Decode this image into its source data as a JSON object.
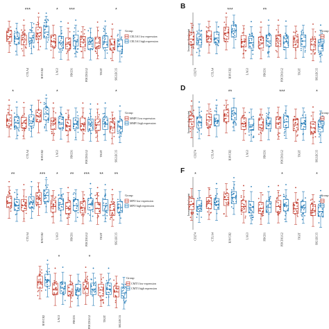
{
  "colors": {
    "low": "#c0392b",
    "high": "#1f77b4",
    "axis": "#333333"
  },
  "chart_data": [
    {
      "id": "A",
      "type": "box",
      "panel_label": "",
      "categories": [
        "CD274",
        "CTLA4",
        "HAVCR2",
        "LAG3",
        "PDCD1",
        "PDCD1LG2",
        "TIGIT",
        "SIGLEC15"
      ],
      "category_labels": [
        "",
        "CTLA4",
        "HAVCR2",
        "LAG3",
        "PDCD1",
        "PDCD1LG2",
        "TIGIT",
        "SIGLEC15"
      ],
      "significance": [
        "",
        "***",
        "",
        "*",
        "***",
        "",
        "",
        "*"
      ],
      "ylabel": "",
      "legend": {
        "title": "Group",
        "entries": [
          "CEL5A1 low expression",
          "CEL5A1 high expression"
        ]
      },
      "series": [
        {
          "name": "CEL5A1 low expression",
          "median": [
            0.55,
            0.48,
            0.62,
            0.45,
            0.4,
            0.44,
            0.42,
            0.38
          ],
          "q1": [
            0.45,
            0.38,
            0.5,
            0.34,
            0.3,
            0.34,
            0.32,
            0.28
          ],
          "q3": [
            0.66,
            0.58,
            0.74,
            0.58,
            0.52,
            0.55,
            0.54,
            0.5
          ]
        },
        {
          "name": "CEL5A1 high expression",
          "median": [
            0.5,
            0.52,
            0.64,
            0.42,
            0.46,
            0.4,
            0.44,
            0.36
          ],
          "q1": [
            0.4,
            0.42,
            0.52,
            0.31,
            0.36,
            0.3,
            0.33,
            0.26
          ],
          "q3": [
            0.62,
            0.63,
            0.76,
            0.55,
            0.58,
            0.52,
            0.56,
            0.48
          ]
        }
      ]
    },
    {
      "id": "B",
      "type": "box",
      "panel_label": "B",
      "categories": [
        "CD274",
        "CTLA4",
        "HAVCR2",
        "LAG3",
        "PDCD1",
        "PDCD1LG2",
        "TIGIT",
        "SIGLEC15"
      ],
      "category_labels": [
        "CD274",
        "CTLA4",
        "HAVCR2",
        "LAG3",
        "PDCD1",
        "PDCD1LG2",
        "TIGIT",
        "SIGLEC15"
      ],
      "significance": [
        "",
        "",
        "***",
        "",
        "**",
        "",
        "",
        ""
      ],
      "ylabel": "Immune checkpoint",
      "legend": {
        "title": "Group",
        "entries": [
          "",
          ""
        ]
      },
      "series": [
        {
          "name": "",
          "median": [
            0.5,
            0.55,
            0.62,
            0.45,
            0.42,
            0.46,
            0.44,
            0.38
          ],
          "q1": [
            0.4,
            0.44,
            0.5,
            0.34,
            0.32,
            0.35,
            0.33,
            0.28
          ],
          "q3": [
            0.62,
            0.66,
            0.74,
            0.57,
            0.54,
            0.58,
            0.56,
            0.5
          ]
        },
        {
          "name": "",
          "median": [
            0.48,
            0.52,
            0.66,
            0.43,
            0.46,
            0.44,
            0.46,
            0.36
          ],
          "q1": [
            0.38,
            0.42,
            0.54,
            0.32,
            0.36,
            0.33,
            0.35,
            0.26
          ],
          "q3": [
            0.6,
            0.64,
            0.78,
            0.55,
            0.58,
            0.56,
            0.58,
            0.48
          ]
        }
      ]
    },
    {
      "id": "C",
      "type": "box",
      "panel_label": "",
      "categories": [
        "CD274",
        "CTLA4",
        "HAVCR2",
        "LAG3",
        "PDCD1",
        "PDCD1LG2",
        "TIGIT",
        "SIGLEC15"
      ],
      "category_labels": [
        "",
        "CTLA4",
        "HAVCR2",
        "LAG3",
        "PDCD1",
        "PDCD1LG2",
        "TIGIT",
        "SIGLEC15"
      ],
      "significance": [
        "*",
        "",
        "",
        "*",
        "",
        "",
        "",
        "*"
      ],
      "ylabel": "",
      "legend": {
        "title": "Group",
        "entries": [
          "MMP1 low expression",
          "MMP1 high expression"
        ]
      },
      "series": [
        {
          "name": "MMP1 low expression",
          "median": [
            0.5,
            0.46,
            0.6,
            0.44,
            0.4,
            0.44,
            0.42,
            0.36
          ],
          "q1": [
            0.4,
            0.36,
            0.48,
            0.33,
            0.3,
            0.33,
            0.31,
            0.26
          ],
          "q3": [
            0.62,
            0.57,
            0.72,
            0.56,
            0.52,
            0.56,
            0.54,
            0.48
          ]
        },
        {
          "name": "MMP1 high expression",
          "median": [
            0.46,
            0.5,
            0.64,
            0.46,
            0.44,
            0.42,
            0.44,
            0.38
          ],
          "q1": [
            0.36,
            0.4,
            0.52,
            0.35,
            0.34,
            0.31,
            0.33,
            0.28
          ],
          "q3": [
            0.58,
            0.62,
            0.76,
            0.58,
            0.56,
            0.54,
            0.56,
            0.5
          ]
        }
      ]
    },
    {
      "id": "D",
      "type": "box",
      "panel_label": "D",
      "categories": [
        "CD274",
        "CTLA4",
        "HAVCR2",
        "LAG3",
        "PDCD1",
        "PDCD1LG2",
        "TIGIT",
        "SIGLEC15"
      ],
      "category_labels": [
        "CD274",
        "CTLA4",
        "HAVCR2",
        "LAG3",
        "PDCD1",
        "PDCD1LG2",
        "TIGIT",
        "SIGLEC15"
      ],
      "significance": [
        "",
        "",
        "**",
        "",
        "",
        "***",
        "",
        "*"
      ],
      "ylabel": "Immune checkpoint",
      "legend": {
        "title": "Group",
        "entries": [
          "",
          ""
        ]
      },
      "series": [
        {
          "name": "",
          "median": [
            0.48,
            0.52,
            0.6,
            0.44,
            0.42,
            0.46,
            0.42,
            0.36
          ],
          "q1": [
            0.38,
            0.42,
            0.48,
            0.33,
            0.32,
            0.35,
            0.31,
            0.26
          ],
          "q3": [
            0.6,
            0.64,
            0.72,
            0.56,
            0.54,
            0.58,
            0.54,
            0.48
          ]
        },
        {
          "name": "",
          "median": [
            0.46,
            0.5,
            0.64,
            0.42,
            0.44,
            0.48,
            0.44,
            0.38
          ],
          "q1": [
            0.36,
            0.4,
            0.52,
            0.31,
            0.34,
            0.37,
            0.33,
            0.28
          ],
          "q3": [
            0.58,
            0.62,
            0.76,
            0.54,
            0.56,
            0.6,
            0.56,
            0.5
          ]
        }
      ]
    },
    {
      "id": "E",
      "type": "box",
      "panel_label": "",
      "categories": [
        "CD274",
        "CTLA4",
        "HAVCR2",
        "LAG3",
        "PDCD1",
        "PDCD1LG2",
        "TIGIT",
        "SIGLEC15"
      ],
      "category_labels": [
        "",
        "CTLA4",
        "HAVCR2",
        "LAG3",
        "PDCD1",
        "PDCD1LG2",
        "TIGIT",
        "SIGLEC15"
      ],
      "significance": [
        "**",
        "",
        "***",
        "*",
        "**",
        "***",
        "**",
        "**"
      ],
      "ylabel": "",
      "legend": {
        "title": "Group",
        "entries": [
          "MPO low expression",
          "MPO high expression"
        ]
      },
      "series": [
        {
          "name": "MPO low expression",
          "median": [
            0.52,
            0.46,
            0.6,
            0.44,
            0.4,
            0.42,
            0.4,
            0.36
          ],
          "q1": [
            0.42,
            0.36,
            0.48,
            0.33,
            0.3,
            0.31,
            0.3,
            0.26
          ],
          "q3": [
            0.64,
            0.58,
            0.72,
            0.56,
            0.52,
            0.54,
            0.52,
            0.48
          ]
        },
        {
          "name": "MPO high expression",
          "median": [
            0.46,
            0.52,
            0.66,
            0.48,
            0.46,
            0.48,
            0.46,
            0.42
          ],
          "q1": [
            0.36,
            0.42,
            0.54,
            0.37,
            0.36,
            0.37,
            0.35,
            0.32
          ],
          "q3": [
            0.58,
            0.64,
            0.78,
            0.6,
            0.58,
            0.6,
            0.58,
            0.54
          ]
        }
      ]
    },
    {
      "id": "F",
      "type": "box",
      "panel_label": "F",
      "categories": [
        "CD274",
        "CTLA4",
        "HAVCR2",
        "LAG3",
        "PDCD1",
        "PDCD1LG2",
        "TIGIT",
        "SIGLEC15"
      ],
      "category_labels": [
        "CD274",
        "CTLA4",
        "HAVCR2",
        "LAG3",
        "PDCD1",
        "PDCD1LG2",
        "TIGIT",
        "SIGLEC15"
      ],
      "significance": [
        "*",
        "",
        "",
        "",
        "",
        "*",
        "",
        "*"
      ],
      "ylabel": "Immune checkpoint",
      "legend": {
        "title": "Group",
        "entries": [
          "",
          ""
        ]
      },
      "series": [
        {
          "name": "",
          "median": [
            0.48,
            0.5,
            0.58,
            0.44,
            0.4,
            0.44,
            0.4,
            0.36
          ],
          "q1": [
            0.38,
            0.4,
            0.46,
            0.33,
            0.3,
            0.33,
            0.3,
            0.26
          ],
          "q3": [
            0.6,
            0.62,
            0.7,
            0.56,
            0.52,
            0.56,
            0.52,
            0.48
          ]
        },
        {
          "name": "",
          "median": [
            0.44,
            0.48,
            0.62,
            0.42,
            0.42,
            0.46,
            0.42,
            0.34
          ],
          "q1": [
            0.34,
            0.38,
            0.5,
            0.31,
            0.32,
            0.35,
            0.32,
            0.24
          ],
          "q3": [
            0.56,
            0.6,
            0.74,
            0.54,
            0.54,
            0.58,
            0.54,
            0.46
          ]
        }
      ]
    },
    {
      "id": "G",
      "type": "box",
      "panel_label": "",
      "categories": [
        "HAVCR2",
        "LAG3",
        "PDCD1",
        "PDCD1LG2",
        "TIGIT",
        "SIGLEC15"
      ],
      "category_labels": [
        "HAVCR2",
        "LAG3",
        "PDCD1",
        "PDCD1LG2",
        "TIGIT",
        "SIGLEC15"
      ],
      "significance": [
        "",
        "*",
        "",
        "*",
        "",
        ""
      ],
      "ylabel": "",
      "legend": {
        "title": "Group",
        "entries": [
          "CMT3 low expression",
          "CMT3 high expression"
        ]
      },
      "series": [
        {
          "name": "CMT3 low expression",
          "median": [
            0.58,
            0.44,
            0.4,
            0.46,
            0.42,
            0.38
          ],
          "q1": [
            0.46,
            0.33,
            0.3,
            0.35,
            0.31,
            0.28
          ],
          "q3": [
            0.7,
            0.56,
            0.52,
            0.58,
            0.54,
            0.5
          ]
        },
        {
          "name": "CMT3 high expression",
          "median": [
            0.62,
            0.46,
            0.42,
            0.44,
            0.44,
            0.36
          ],
          "q1": [
            0.5,
            0.35,
            0.32,
            0.33,
            0.33,
            0.26
          ],
          "q3": [
            0.74,
            0.58,
            0.54,
            0.56,
            0.56,
            0.48
          ]
        }
      ]
    }
  ]
}
